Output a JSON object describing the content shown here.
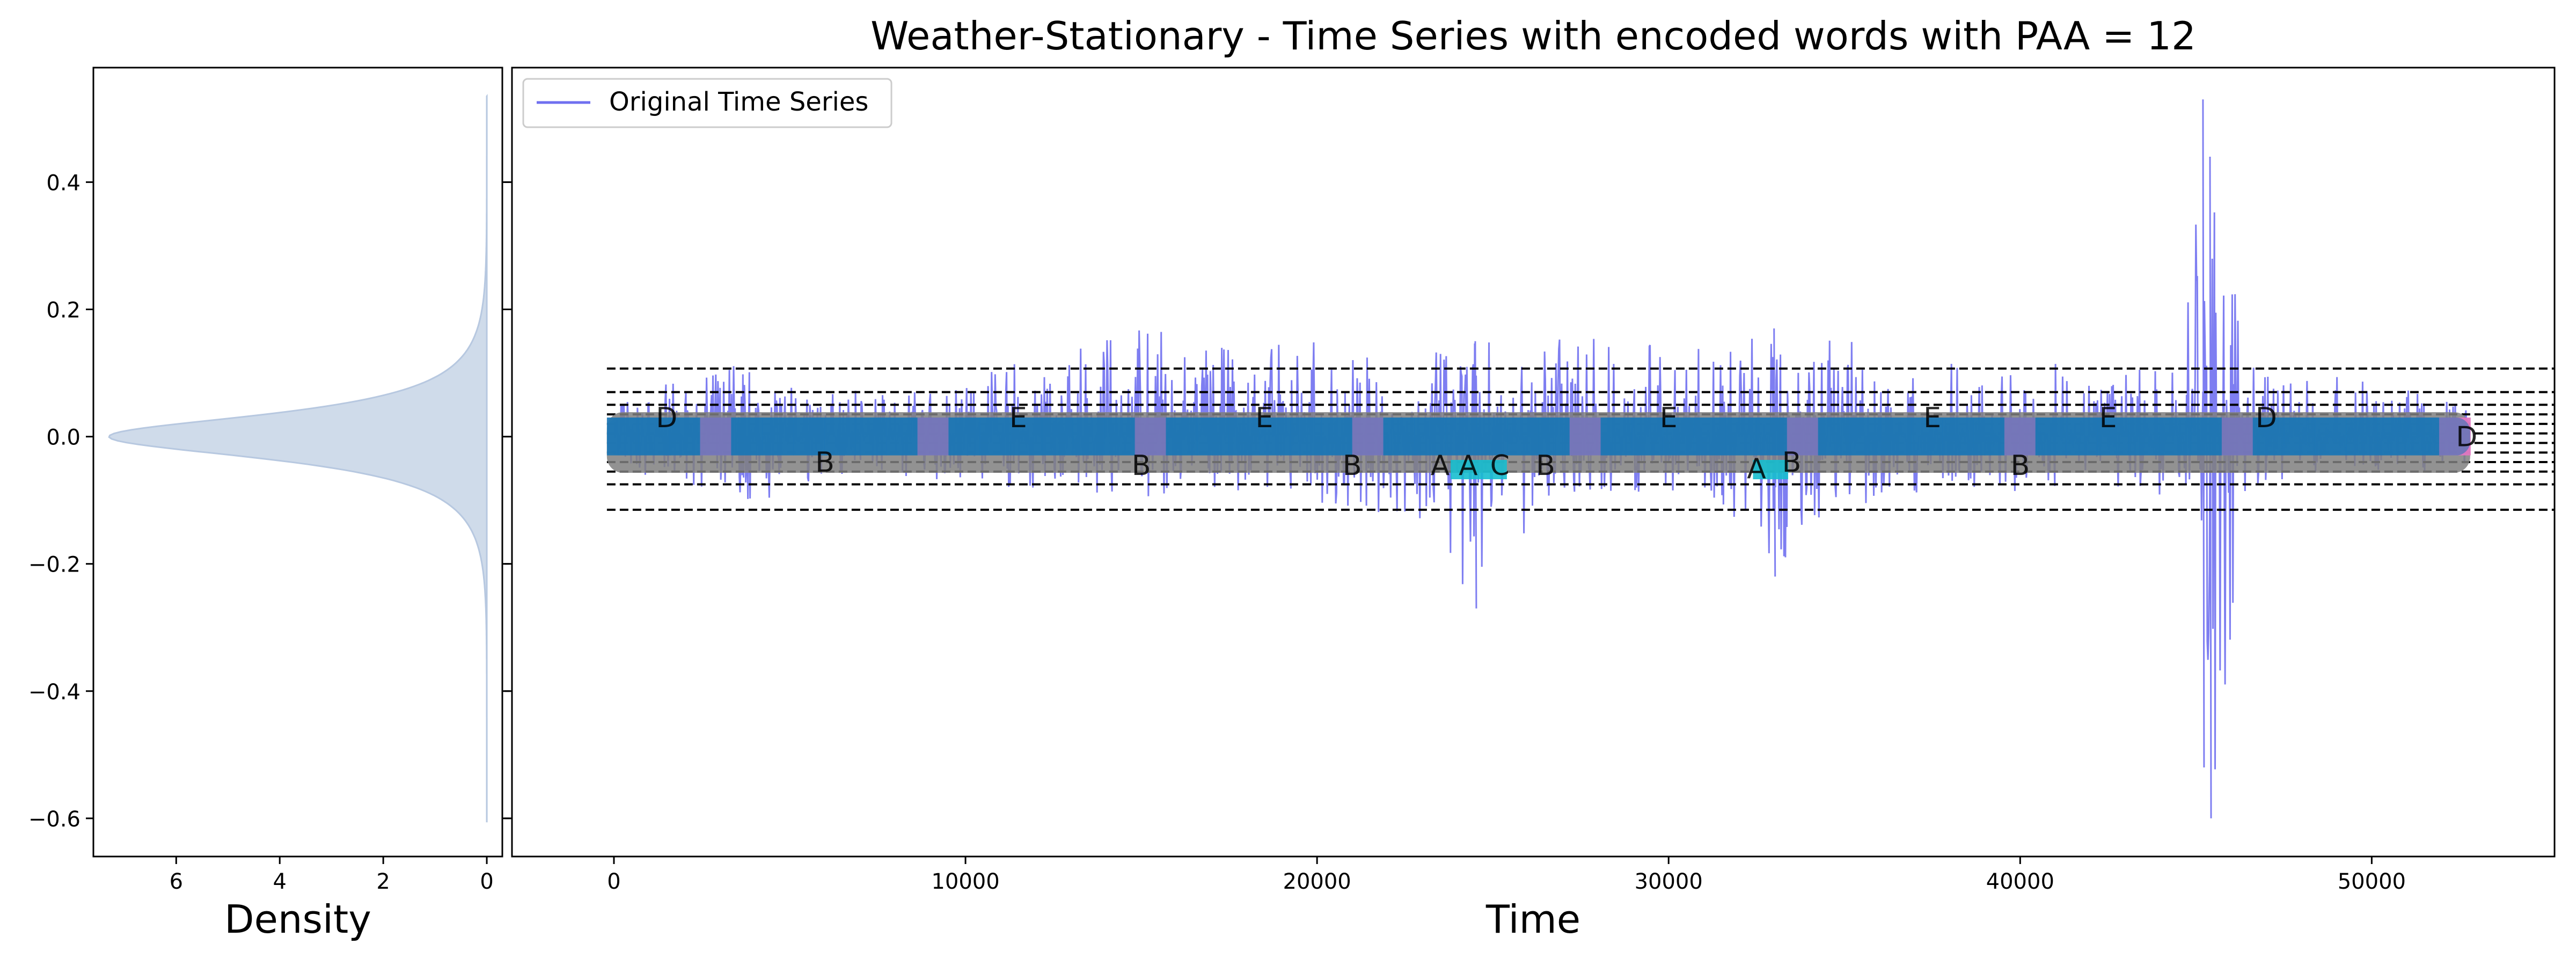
{
  "chart_data": [
    {
      "type": "area",
      "panel": "density",
      "xlabel": "Density",
      "ylabel": "",
      "xlim": [
        7.6,
        -0.3
      ],
      "ylim": [
        -0.66,
        0.58
      ],
      "x_ticks": [
        6,
        4,
        2,
        0
      ],
      "y_ticks": [
        0.4,
        0.2,
        0.0,
        -0.2,
        -0.4,
        -0.6
      ],
      "y_tick_labels": [
        "0.4",
        "0.2",
        "0.0",
        "−0.2",
        "−0.4",
        "−0.6"
      ],
      "distribution": {
        "peak_density": 7.3,
        "center": 0.0,
        "spread": 0.05,
        "support": [
          -0.605,
          0.535
        ]
      },
      "fill_color": "#cfdbea",
      "line_color": "#b7c8e0"
    },
    {
      "type": "line",
      "panel": "time-series",
      "title": "Weather-Stationary - Time Series with encoded words with PAA = 12",
      "xlabel": "Time",
      "ylabel": "",
      "xlim": [
        -2900,
        55200
      ],
      "ylim": [
        -0.66,
        0.58
      ],
      "x_ticks": [
        0,
        10000,
        20000,
        30000,
        40000,
        50000
      ],
      "legend": {
        "position": "top-left",
        "entries": [
          {
            "label": "Original Time Series",
            "color": "#7070f0"
          }
        ]
      },
      "series": [
        {
          "name": "Original Time Series",
          "color": "#7070f0",
          "n_points": 52696,
          "envelope": [
            {
              "x": 0,
              "low": -0.05,
              "high": 0.06
            },
            {
              "x": 2500,
              "low": -0.08,
              "high": 0.1
            },
            {
              "x": 3500,
              "low": -0.12,
              "high": 0.13
            },
            {
              "x": 6000,
              "low": -0.06,
              "high": 0.07
            },
            {
              "x": 9000,
              "low": -0.07,
              "high": 0.08
            },
            {
              "x": 11000,
              "low": -0.08,
              "high": 0.12
            },
            {
              "x": 13000,
              "low": -0.09,
              "high": 0.13
            },
            {
              "x": 15000,
              "low": -0.1,
              "high": 0.19
            },
            {
              "x": 17000,
              "low": -0.09,
              "high": 0.14
            },
            {
              "x": 19000,
              "low": -0.1,
              "high": 0.15
            },
            {
              "x": 21000,
              "low": -0.12,
              "high": 0.16
            },
            {
              "x": 23000,
              "low": -0.13,
              "high": 0.17
            },
            {
              "x": 24500,
              "low": -0.27,
              "high": 0.15
            },
            {
              "x": 26500,
              "low": -0.1,
              "high": 0.16
            },
            {
              "x": 28500,
              "low": -0.09,
              "high": 0.19
            },
            {
              "x": 30500,
              "low": -0.1,
              "high": 0.13
            },
            {
              "x": 32500,
              "low": -0.16,
              "high": 0.19
            },
            {
              "x": 33000,
              "low": -0.22,
              "high": 0.17
            },
            {
              "x": 34500,
              "low": -0.12,
              "high": 0.16
            },
            {
              "x": 36500,
              "low": -0.1,
              "high": 0.13
            },
            {
              "x": 38500,
              "low": -0.08,
              "high": 0.11
            },
            {
              "x": 40500,
              "low": -0.09,
              "high": 0.12
            },
            {
              "x": 42500,
              "low": -0.08,
              "high": 0.1
            },
            {
              "x": 44500,
              "low": -0.1,
              "high": 0.12
            },
            {
              "x": 45200,
              "low": -0.52,
              "high": 0.53
            },
            {
              "x": 45400,
              "low": -0.6,
              "high": 0.44
            },
            {
              "x": 46500,
              "low": -0.08,
              "high": 0.12
            },
            {
              "x": 48500,
              "low": -0.07,
              "high": 0.1
            },
            {
              "x": 50500,
              "low": -0.06,
              "high": 0.08
            },
            {
              "x": 52700,
              "low": -0.05,
              "high": 0.06
            }
          ]
        }
      ],
      "breakpoints": [
        -0.115,
        -0.075,
        -0.055,
        -0.04,
        -0.025,
        -0.01,
        0.005,
        0.02,
        0.035,
        0.05,
        0.07,
        0.107
      ],
      "encoded_band": {
        "x_start": -200,
        "x_end": 52800,
        "center": -0.005,
        "half_height": 0.035,
        "colors": [
          "#1f77b4",
          "#e377c2",
          "#7f7f7f",
          "#17becf"
        ]
      },
      "encoded_words": [
        {
          "x": 1500,
          "y": 0.03,
          "label": "D"
        },
        {
          "x": 6000,
          "y": -0.04,
          "label": "B"
        },
        {
          "x": 11500,
          "y": 0.03,
          "label": "E"
        },
        {
          "x": 15000,
          "y": -0.045,
          "label": "B"
        },
        {
          "x": 18500,
          "y": 0.03,
          "label": "E"
        },
        {
          "x": 21000,
          "y": -0.045,
          "label": "B"
        },
        {
          "x": 23500,
          "y": -0.045,
          "label": "A"
        },
        {
          "x": 24300,
          "y": -0.045,
          "label": "A"
        },
        {
          "x": 25200,
          "y": -0.045,
          "label": "C"
        },
        {
          "x": 26500,
          "y": -0.045,
          "label": "B"
        },
        {
          "x": 30000,
          "y": 0.03,
          "label": "E"
        },
        {
          "x": 32500,
          "y": -0.05,
          "label": "A"
        },
        {
          "x": 33500,
          "y": -0.04,
          "label": "B"
        },
        {
          "x": 37500,
          "y": 0.03,
          "label": "E"
        },
        {
          "x": 40000,
          "y": -0.045,
          "label": "B"
        },
        {
          "x": 42500,
          "y": 0.03,
          "label": "E"
        },
        {
          "x": 47000,
          "y": 0.03,
          "label": "D"
        },
        {
          "x": 52700,
          "y": 0.0,
          "label": "D"
        }
      ]
    }
  ]
}
